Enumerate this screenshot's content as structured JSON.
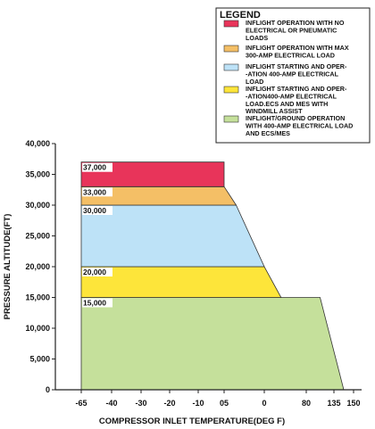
{
  "chart_data": {
    "type": "area",
    "xlabel": "COMPRESSOR INLET TEMPERATURE(DEG F)",
    "ylabel": "PRESSURE ALTITUDE(FT)",
    "x_ticks": [
      "-65",
      "-40",
      "-30",
      "-20",
      "-10",
      "05",
      "0",
      "80",
      "135",
      "150"
    ],
    "y_ticks": [
      "0",
      "5,000",
      "10,000",
      "15,000",
      "20,000",
      "25,000",
      "30,000",
      "35,000",
      "40,000"
    ],
    "ylim": [
      0,
      40000
    ],
    "grid": false,
    "legend": {
      "title": "LEGEND",
      "position": "top-right",
      "entries": [
        {
          "color": "#e8345a",
          "lines": [
            "INFLIGHT OPERATION WITH NO",
            "ELECTRICAL OR PNEUMATIC",
            "LOADS"
          ]
        },
        {
          "color": "#f4bf66",
          "lines": [
            "INFLIGHT OPERATION WITH MAX",
            "300-AMP ELECTRICAL LOAD"
          ]
        },
        {
          "color": "#bde2f7",
          "lines": [
            "INFLIGHT STARTING AND OPER-",
            "-ATION 400-AMP ELECTRICAL",
            "LOAD"
          ]
        },
        {
          "color": "#fde53a",
          "lines": [
            "INFLIGHT STARTING AND OPER-",
            "-ATION400-AMP ELECTRICAL",
            "LOAD.ECS AND MES WITH",
            "WINDMILL ASSIST"
          ]
        },
        {
          "color": "#c5e09b",
          "lines": [
            "INFLIGHT/GROUND OPERATION",
            "WITH 400-AMP ELECTRICAL LOAD",
            "AND ECS/MES"
          ]
        }
      ]
    },
    "bands": [
      {
        "label": "15,000",
        "color": "#c5e09b",
        "alt_low": 0,
        "alt_high": 15000,
        "right_edge": [
          {
            "alt": 0,
            "x_tick": 8.5
          },
          {
            "alt": 15000,
            "x_tick": 7.5
          }
        ]
      },
      {
        "label": "20,000",
        "color": "#fde53a",
        "alt_low": 15000,
        "alt_high": 20000,
        "right_edge": [
          {
            "alt": 15000,
            "x_tick": 6.4
          },
          {
            "alt": 20000,
            "x_tick": 6.0
          }
        ]
      },
      {
        "label": "30,000",
        "color": "#bde2f7",
        "alt_low": 20000,
        "alt_high": 30000,
        "right_edge": [
          {
            "alt": 20000,
            "x_tick": 6.0
          },
          {
            "alt": 30000,
            "x_tick": 5.3
          }
        ]
      },
      {
        "label": "33,000",
        "color": "#f4bf66",
        "alt_low": 30000,
        "alt_high": 33000,
        "right_edge": [
          {
            "alt": 30000,
            "x_tick": 5.3
          },
          {
            "alt": 33000,
            "x_tick": 5.0
          }
        ]
      },
      {
        "label": "37,000",
        "color": "#e8345a",
        "alt_low": 33000,
        "alt_high": 37000,
        "right_edge": [
          {
            "alt": 33000,
            "x_tick": 5.0
          },
          {
            "alt": 37000,
            "x_tick": 5.0
          }
        ]
      }
    ]
  }
}
